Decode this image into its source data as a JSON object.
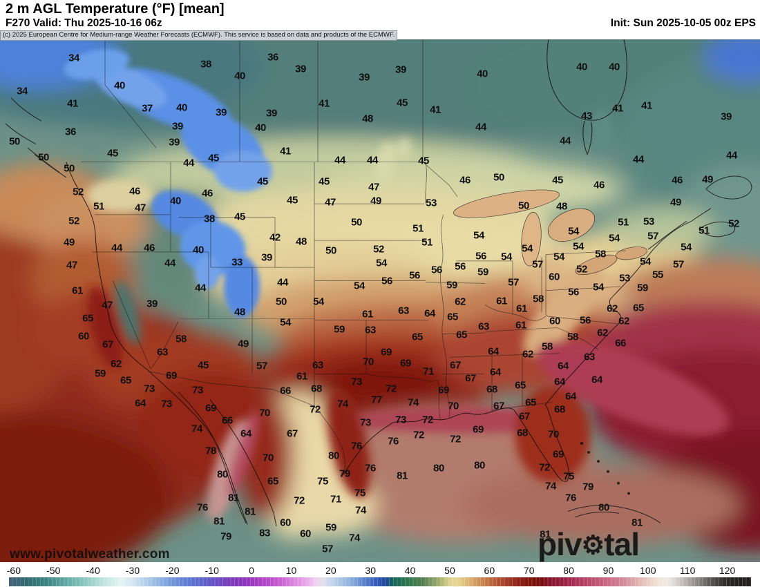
{
  "header": {
    "title": "2 m AGL Temperature (°F) [mean]",
    "forecast_line": "F270 Valid: Thu 2025-10-16 06z",
    "init_line": "Init: Sun 2025-10-05 00z EPS"
  },
  "attribution": {
    "text": "(c) 2025 European Centre for Medium-range Weather Forecasts (ECMWF). This service is based on data and products of the ECMWF."
  },
  "watermarks": {
    "url": "www.pivotalweather.com",
    "brand_pre": "piv",
    "gear": "⚙",
    "brand_post": "tal weather"
  },
  "colorbar": {
    "unit": "°F",
    "range": [
      -60,
      120
    ],
    "ticks": [
      "-60",
      "-50",
      "-40",
      "-30",
      "-20",
      "-10",
      "0",
      "10",
      "20",
      "30",
      "40",
      "50",
      "60",
      "70",
      "80",
      "90",
      "100",
      "110",
      "120"
    ],
    "stops": [
      [
        -61,
        "#46627e"
      ],
      [
        -57,
        "#31696f"
      ],
      [
        -52,
        "#3b8282"
      ],
      [
        -47,
        "#5fa8a2"
      ],
      [
        -42,
        "#8cc8c2"
      ],
      [
        -37,
        "#c2e6e0"
      ],
      [
        -33,
        "#e6f5f1"
      ],
      [
        -30,
        "#d4e4f2"
      ],
      [
        -26,
        "#abc8ea"
      ],
      [
        -22,
        "#84a8e0"
      ],
      [
        -18,
        "#6487d6"
      ],
      [
        -14,
        "#5b6ecd"
      ],
      [
        -10,
        "#6355c5"
      ],
      [
        -7,
        "#7343bd"
      ],
      [
        -4,
        "#8136b9"
      ],
      [
        -1,
        "#9136bb"
      ],
      [
        2,
        "#a83fc4"
      ],
      [
        5,
        "#bc4ecd"
      ],
      [
        8,
        "#cc68d6"
      ],
      [
        11,
        "#dc8ae0"
      ],
      [
        14,
        "#e9ace9"
      ],
      [
        16,
        "#f0d0f0"
      ],
      [
        18,
        "#e4e0ee"
      ],
      [
        20,
        "#c6d6ec"
      ],
      [
        23,
        "#a3c0e4"
      ],
      [
        26,
        "#7da4d8"
      ],
      [
        29,
        "#527ac8"
      ],
      [
        32,
        "#2c54b4"
      ],
      [
        34,
        "#1c4898"
      ],
      [
        35.5,
        "#14635a"
      ],
      [
        37,
        "#1d6b52"
      ],
      [
        40,
        "#35784f"
      ],
      [
        43,
        "#527f52"
      ],
      [
        45,
        "#75935f"
      ],
      [
        47,
        "#9cab6c"
      ],
      [
        49,
        "#c6c57e"
      ],
      [
        50.5,
        "#e4d794"
      ],
      [
        52,
        "#e7d492"
      ],
      [
        54,
        "#dfbc7c"
      ],
      [
        56,
        "#d5a368"
      ],
      [
        58,
        "#ca8853"
      ],
      [
        60,
        "#bf6d42"
      ],
      [
        62,
        "#b25536"
      ],
      [
        64,
        "#a43f2a"
      ],
      [
        66,
        "#972e1f"
      ],
      [
        68,
        "#8a1f15"
      ],
      [
        70,
        "#7e150d"
      ],
      [
        72,
        "#770f09"
      ],
      [
        73.5,
        "#7a0f16"
      ],
      [
        75,
        "#831327"
      ],
      [
        77,
        "#8f1935"
      ],
      [
        79,
        "#9b2143"
      ],
      [
        81,
        "#a62c50"
      ],
      [
        83,
        "#b03a5d"
      ],
      [
        85,
        "#b84869"
      ],
      [
        87,
        "#c05674"
      ],
      [
        89,
        "#c7647f"
      ],
      [
        91,
        "#cd738a"
      ],
      [
        93,
        "#d28394"
      ],
      [
        95,
        "#d896a0"
      ],
      [
        97,
        "#dfadae"
      ],
      [
        99,
        "#e7c3bc"
      ],
      [
        101,
        "#eed7cc"
      ],
      [
        103,
        "#f3e6dc"
      ],
      [
        105,
        "#efe9e4"
      ],
      [
        107,
        "#d9d5d1"
      ],
      [
        109,
        "#beb9b5"
      ],
      [
        111,
        "#a19c98"
      ],
      [
        113,
        "#83807c"
      ],
      [
        115,
        "#666260"
      ],
      [
        117,
        "#4a4745"
      ],
      [
        119,
        "#333130"
      ],
      [
        121,
        "#262423"
      ],
      [
        126,
        "#1f1d1c"
      ]
    ]
  },
  "map": {
    "stations": [
      [
        107,
        84,
        34
      ],
      [
        298,
        93,
        38
      ],
      [
        347,
        110,
        40
      ],
      [
        32,
        132,
        34
      ],
      [
        173,
        124,
        40
      ],
      [
        105,
        150,
        41
      ],
      [
        213,
        157,
        37
      ],
      [
        263,
        156,
        40
      ],
      [
        320,
        163,
        39
      ],
      [
        257,
        183,
        39
      ],
      [
        102,
        191,
        36
      ],
      [
        252,
        206,
        39
      ],
      [
        21,
        205,
        50
      ],
      [
        163,
        222,
        45
      ],
      [
        63,
        228,
        50
      ],
      [
        273,
        236,
        44
      ],
      [
        309,
        229,
        45
      ],
      [
        100,
        244,
        50
      ],
      [
        113,
        278,
        52
      ],
      [
        195,
        277,
        46
      ],
      [
        300,
        280,
        46
      ],
      [
        254,
        291,
        40
      ],
      [
        143,
        299,
        51
      ],
      [
        203,
        301,
        47
      ],
      [
        395,
        83,
        36
      ],
      [
        435,
        100,
        39
      ],
      [
        527,
        112,
        39
      ],
      [
        580,
        101,
        39
      ],
      [
        698,
        107,
        40
      ],
      [
        469,
        150,
        41
      ],
      [
        582,
        149,
        45
      ],
      [
        630,
        159,
        41
      ],
      [
        393,
        164,
        39
      ],
      [
        532,
        172,
        48
      ],
      [
        377,
        185,
        40
      ],
      [
        696,
        184,
        44
      ],
      [
        413,
        219,
        41
      ],
      [
        492,
        232,
        44
      ],
      [
        539,
        232,
        44
      ],
      [
        613,
        233,
        45
      ],
      [
        380,
        263,
        45
      ],
      [
        469,
        263,
        45
      ],
      [
        673,
        261,
        46
      ],
      [
        722,
        257,
        50
      ],
      [
        541,
        271,
        47
      ],
      [
        423,
        290,
        45
      ],
      [
        478,
        293,
        47
      ],
      [
        544,
        291,
        49
      ],
      [
        624,
        294,
        53
      ],
      [
        842,
        97,
        40
      ],
      [
        889,
        97,
        40
      ],
      [
        894,
        157,
        41
      ],
      [
        936,
        153,
        41
      ],
      [
        849,
        168,
        43
      ],
      [
        1051,
        169,
        39
      ],
      [
        818,
        204,
        44
      ],
      [
        924,
        231,
        44
      ],
      [
        1059,
        225,
        44
      ],
      [
        807,
        261,
        45
      ],
      [
        867,
        268,
        46
      ],
      [
        980,
        261,
        46
      ],
      [
        1024,
        260,
        49
      ],
      [
        978,
        293,
        49
      ],
      [
        758,
        298,
        50
      ],
      [
        813,
        299,
        48
      ],
      [
        107,
        320,
        52
      ],
      [
        303,
        317,
        38
      ],
      [
        347,
        314,
        45
      ],
      [
        100,
        351,
        49
      ],
      [
        169,
        359,
        44
      ],
      [
        216,
        359,
        46
      ],
      [
        287,
        362,
        40
      ],
      [
        104,
        384,
        47
      ],
      [
        246,
        381,
        44
      ],
      [
        343,
        380,
        33
      ],
      [
        112,
        421,
        61
      ],
      [
        290,
        417,
        44
      ],
      [
        155,
        442,
        47
      ],
      [
        220,
        440,
        39
      ],
      [
        347,
        452,
        48
      ],
      [
        127,
        461,
        65
      ],
      [
        121,
        487,
        60
      ],
      [
        262,
        491,
        58
      ],
      [
        156,
        499,
        67
      ],
      [
        352,
        498,
        49
      ],
      [
        235,
        510,
        63
      ],
      [
        168,
        527,
        62
      ],
      [
        294,
        529,
        45
      ],
      [
        145,
        541,
        59
      ],
      [
        248,
        544,
        69
      ],
      [
        182,
        551,
        65
      ],
      [
        516,
        322,
        50
      ],
      [
        605,
        331,
        51
      ],
      [
        398,
        344,
        42
      ],
      [
        436,
        350,
        48
      ],
      [
        618,
        351,
        51
      ],
      [
        693,
        341,
        54
      ],
      [
        479,
        363,
        50
      ],
      [
        548,
        361,
        52
      ],
      [
        386,
        373,
        39
      ],
      [
        696,
        371,
        56
      ],
      [
        733,
        372,
        54
      ],
      [
        552,
        381,
        54
      ],
      [
        666,
        386,
        56
      ],
      [
        632,
        391,
        56
      ],
      [
        699,
        394,
        59
      ],
      [
        409,
        409,
        44
      ],
      [
        600,
        399,
        56
      ],
      [
        560,
        407,
        56
      ],
      [
        520,
        414,
        54
      ],
      [
        654,
        413,
        59
      ],
      [
        407,
        437,
        50
      ],
      [
        461,
        437,
        54
      ],
      [
        666,
        437,
        62
      ],
      [
        726,
        436,
        61
      ],
      [
        413,
        467,
        54
      ],
      [
        532,
        455,
        61
      ],
      [
        584,
        450,
        63
      ],
      [
        622,
        454,
        64
      ],
      [
        655,
        459,
        65
      ],
      [
        700,
        473,
        63
      ],
      [
        491,
        477,
        59
      ],
      [
        536,
        478,
        63
      ],
      [
        604,
        488,
        65
      ],
      [
        668,
        485,
        65
      ],
      [
        714,
        509,
        64
      ],
      [
        379,
        530,
        57
      ],
      [
        559,
        510,
        69
      ],
      [
        460,
        529,
        63
      ],
      [
        533,
        524,
        70
      ],
      [
        587,
        526,
        69
      ],
      [
        659,
        529,
        67
      ],
      [
        620,
        538,
        71
      ],
      [
        717,
        539,
        64
      ],
      [
        437,
        545,
        61
      ],
      [
        681,
        548,
        67
      ],
      [
        516,
        553,
        73
      ],
      [
        902,
        322,
        51
      ],
      [
        939,
        321,
        53
      ],
      [
        1019,
        334,
        51
      ],
      [
        1062,
        324,
        52
      ],
      [
        830,
        335,
        54
      ],
      [
        889,
        345,
        54
      ],
      [
        945,
        342,
        57
      ],
      [
        837,
        357,
        54
      ],
      [
        763,
        360,
        54
      ],
      [
        809,
        372,
        54
      ],
      [
        869,
        368,
        58
      ],
      [
        993,
        358,
        54
      ],
      [
        778,
        383,
        57
      ],
      [
        934,
        379,
        54
      ],
      [
        982,
        383,
        57
      ],
      [
        842,
        390,
        52
      ],
      [
        802,
        401,
        60
      ],
      [
        952,
        398,
        55
      ],
      [
        743,
        409,
        57
      ],
      [
        904,
        403,
        53
      ],
      [
        830,
        423,
        56
      ],
      [
        866,
        416,
        54
      ],
      [
        930,
        417,
        59
      ],
      [
        779,
        433,
        58
      ],
      [
        755,
        447,
        61
      ],
      [
        886,
        447,
        62
      ],
      [
        924,
        446,
        65
      ],
      [
        754,
        471,
        61
      ],
      [
        803,
        465,
        60
      ],
      [
        847,
        464,
        56
      ],
      [
        903,
        465,
        62
      ],
      [
        872,
        482,
        62
      ],
      [
        829,
        488,
        58
      ],
      [
        898,
        497,
        66
      ],
      [
        792,
        502,
        58
      ],
      [
        764,
        513,
        62
      ],
      [
        853,
        517,
        63
      ],
      [
        815,
        530,
        64
      ],
      [
        810,
        553,
        64
      ],
      [
        864,
        550,
        64
      ],
      [
        753,
        558,
        65
      ],
      [
        216,
        563,
        73
      ],
      [
        286,
        565,
        73
      ],
      [
        203,
        584,
        64
      ],
      [
        241,
        585,
        73
      ],
      [
        305,
        591,
        69
      ],
      [
        329,
        609,
        66
      ],
      [
        285,
        621,
        74
      ],
      [
        356,
        628,
        64
      ],
      [
        305,
        653,
        78
      ],
      [
        322,
        687,
        80
      ],
      [
        338,
        721,
        81
      ],
      [
        293,
        735,
        76
      ],
      [
        362,
        741,
        81
      ],
      [
        317,
        755,
        81
      ],
      [
        327,
        777,
        79
      ],
      [
        413,
        566,
        66
      ],
      [
        458,
        563,
        68
      ],
      [
        566,
        563,
        72
      ],
      [
        642,
        565,
        69
      ],
      [
        712,
        564,
        68
      ],
      [
        545,
        579,
        77
      ],
      [
        496,
        585,
        74
      ],
      [
        598,
        583,
        74
      ],
      [
        656,
        588,
        70
      ],
      [
        722,
        588,
        67
      ],
      [
        456,
        593,
        72
      ],
      [
        383,
        598,
        70
      ],
      [
        529,
        612,
        73
      ],
      [
        580,
        608,
        73
      ],
      [
        619,
        608,
        72
      ],
      [
        423,
        628,
        67
      ],
      [
        692,
        622,
        69
      ],
      [
        606,
        630,
        72
      ],
      [
        659,
        636,
        72
      ],
      [
        569,
        639,
        76
      ],
      [
        516,
        646,
        76
      ],
      [
        388,
        663,
        70
      ],
      [
        483,
        660,
        80
      ],
      [
        635,
        678,
        80
      ],
      [
        694,
        674,
        80
      ],
      [
        536,
        678,
        76
      ],
      [
        582,
        689,
        81
      ],
      [
        499,
        686,
        79
      ],
      [
        395,
        697,
        65
      ],
      [
        467,
        697,
        75
      ],
      [
        521,
        714,
        75
      ],
      [
        486,
        723,
        71
      ],
      [
        433,
        725,
        72
      ],
      [
        522,
        739,
        74
      ],
      [
        413,
        757,
        60
      ],
      [
        383,
        772,
        83
      ],
      [
        442,
        773,
        60
      ],
      [
        479,
        764,
        59
      ],
      [
        513,
        779,
        74
      ],
      [
        474,
        795,
        57
      ],
      [
        826,
        574,
        64
      ],
      [
        768,
        583,
        65
      ],
      [
        810,
        593,
        68
      ],
      [
        759,
        603,
        67
      ],
      [
        756,
        627,
        68
      ],
      [
        801,
        629,
        70
      ],
      [
        808,
        658,
        69
      ],
      [
        788,
        677,
        72
      ],
      [
        823,
        690,
        75
      ],
      [
        797,
        704,
        74
      ],
      [
        851,
        705,
        79
      ],
      [
        826,
        721,
        76
      ],
      [
        874,
        735,
        80
      ],
      [
        922,
        757,
        81
      ],
      [
        789,
        774,
        81
      ]
    ]
  }
}
